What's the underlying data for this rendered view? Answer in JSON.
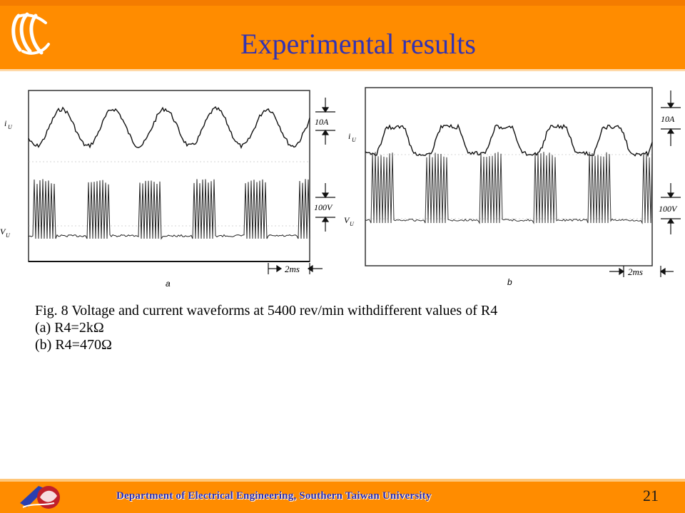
{
  "slide": {
    "title": "Experimental results",
    "page_number": "21",
    "footer": "Department of Electrical Engineering, Southern Taiwan University"
  },
  "figures": [
    {
      "sublabel": "a",
      "current_label": "i",
      "current_sub": "U",
      "voltage_label": "V",
      "voltage_sub": "U",
      "current_scale": "10A",
      "voltage_scale": "100V",
      "time_scale": "2ms"
    },
    {
      "sublabel": "b",
      "current_label": "i",
      "current_sub": "U",
      "voltage_label": "V",
      "voltage_sub": "U",
      "current_scale": "10A",
      "voltage_scale": "100V",
      "time_scale": "2ms"
    }
  ],
  "caption": {
    "line1": "Fig. 8 Voltage and current waveforms at 5400 rev/min withdifferent values of R4",
    "line2": "(a) R4=2kΩ",
    "line3": "(b) R4=470Ω"
  },
  "colors": {
    "header": "#ff8c00",
    "title": "#3333b2",
    "footer_text": "#2b2bb0"
  }
}
